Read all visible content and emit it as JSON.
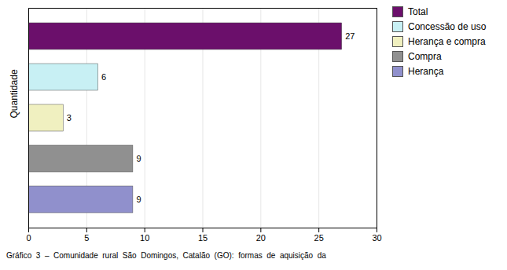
{
  "chart_data": {
    "type": "bar",
    "orientation": "horizontal",
    "caption": "Gráfico  3  –  Comunidade  rural  São  Domingos,  Catalão  (GO):  formas  de  aquisição  da",
    "ylabel": "Quantidade",
    "categories": [
      "Total",
      "Concessão de uso",
      "Herança e compra",
      "Compra",
      "Herança"
    ],
    "values": [
      27,
      6,
      3,
      9,
      9
    ],
    "colors": [
      "#6b0f6b",
      "#c8f0f4",
      "#f0f0c0",
      "#909090",
      "#9090cc"
    ],
    "xlim": [
      0,
      30
    ],
    "xticks": [
      0,
      5,
      10,
      15,
      20,
      25,
      30
    ],
    "grid": true,
    "legend": "upper right",
    "data_labels": true,
    "tick_labels": "x"
  }
}
